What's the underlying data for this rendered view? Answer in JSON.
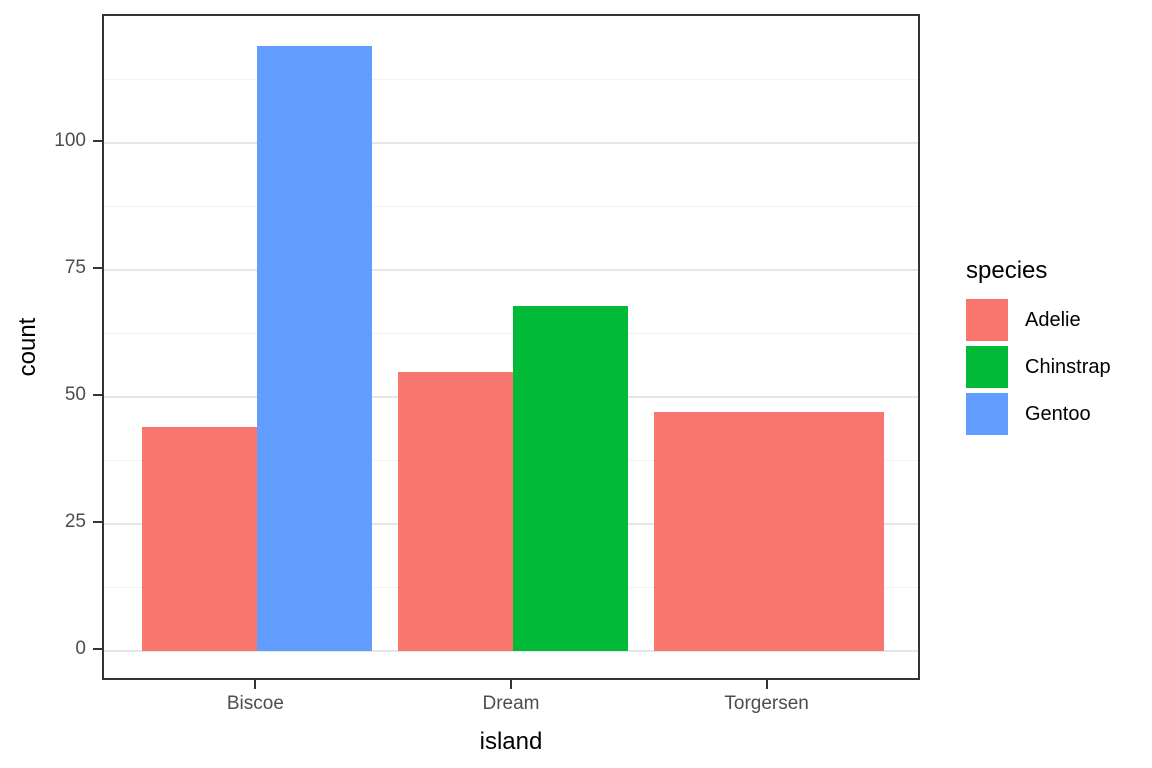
{
  "figure": {
    "background": "#ffffff"
  },
  "chart_data": {
    "type": "bar",
    "title": "",
    "xlabel": "island",
    "ylabel": "count",
    "categories": [
      "Biscoe",
      "Dream",
      "Torgersen"
    ],
    "series": [
      {
        "name": "Adelie",
        "color": "#F8766D",
        "values": {
          "Biscoe": 44,
          "Dream": 55,
          "Torgersen": 47
        }
      },
      {
        "name": "Chinstrap",
        "color": "#00BA38",
        "values": {
          "Dream": 68
        }
      },
      {
        "name": "Gentoo",
        "color": "#619CFF",
        "values": {
          "Biscoe": 119
        }
      }
    ],
    "y_major_ticks": [
      0,
      25,
      50,
      75,
      100
    ],
    "y_minor_ticks": [
      12.5,
      37.5,
      62.5,
      87.5,
      112.5
    ],
    "ylim": [
      -6.1,
      125
    ],
    "xlim": [
      0.4,
      3.6
    ],
    "bar_total_width": 0.9,
    "dodge": "preserve-total",
    "grid": {
      "major_color": "#e6e6e6",
      "minor_color": "#f2f2f2",
      "enabled": true
    },
    "panel": {
      "border_color": "#333333",
      "background": "#ffffff"
    },
    "legend": {
      "title": "species",
      "position": "right",
      "entries": [
        {
          "label": "Adelie",
          "color": "#F8766D"
        },
        {
          "label": "Chinstrap",
          "color": "#00BA38"
        },
        {
          "label": "Gentoo",
          "color": "#619CFF"
        }
      ]
    }
  }
}
